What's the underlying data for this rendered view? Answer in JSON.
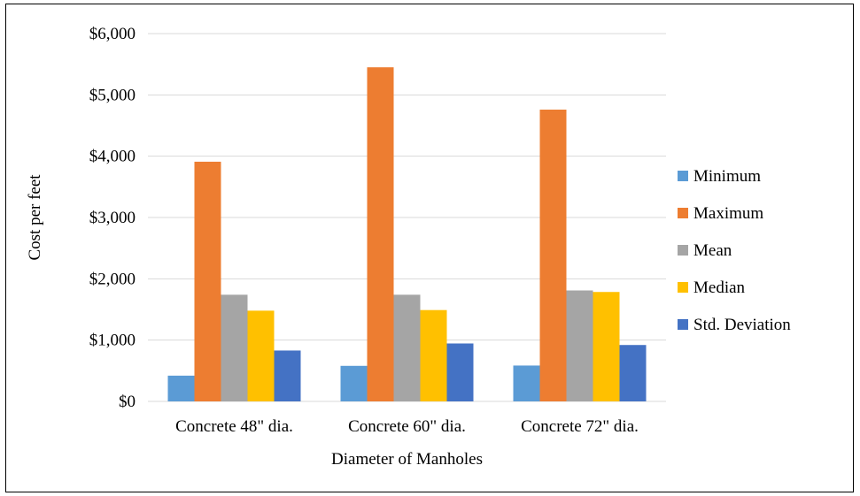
{
  "chart_data": {
    "type": "bar",
    "xlabel": "Diameter of Manholes",
    "ylabel": "Cost per feet",
    "ylim": [
      0,
      6000
    ],
    "yticks": [
      0,
      1000,
      2000,
      3000,
      4000,
      5000,
      6000
    ],
    "ytick_labels": [
      "$0",
      "$1,000",
      "$2,000",
      "$3,000",
      "$4,000",
      "$5,000",
      "$6,000"
    ],
    "grid": "horizontal",
    "legend_position": "right",
    "categories": [
      "Concrete 48\" dia.",
      "Concrete 60\" dia.",
      "Concrete 72\" dia."
    ],
    "series": [
      {
        "name": "Minimum",
        "color": "#5b9bd5",
        "values": [
          420,
          580,
          585
        ]
      },
      {
        "name": "Maximum",
        "color": "#ed7d31",
        "values": [
          3910,
          5450,
          4760
        ]
      },
      {
        "name": "Mean",
        "color": "#a5a5a5",
        "values": [
          1740,
          1740,
          1810
        ]
      },
      {
        "name": "Median",
        "color": "#ffc000",
        "values": [
          1480,
          1490,
          1785
        ]
      },
      {
        "name": "Std. Deviation",
        "color": "#4472c4",
        "values": [
          830,
          945,
          920
        ]
      }
    ]
  }
}
